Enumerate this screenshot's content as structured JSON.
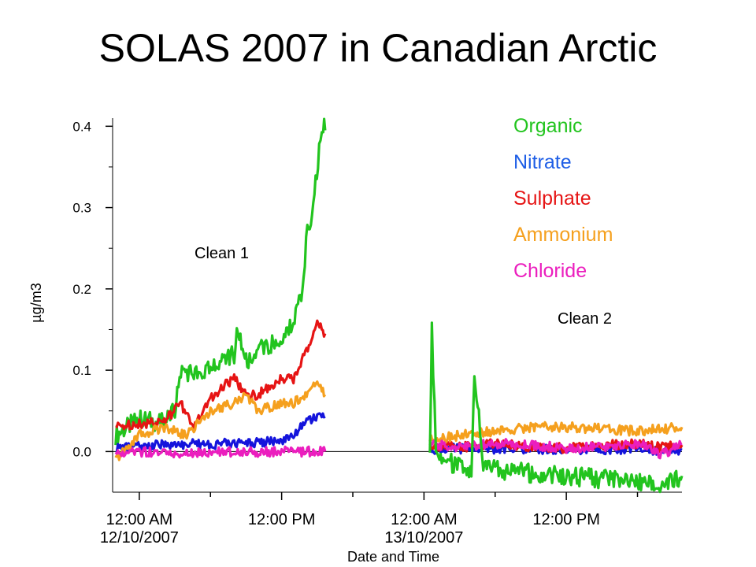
{
  "title": "SOLAS 2007 in Canadian Arctic",
  "chart_data": {
    "type": "line",
    "title": "SOLAS 2007 in Canadian Arctic",
    "xlabel": "Date and Time",
    "ylabel": "µg/m3",
    "ylim": [
      -0.05,
      0.41
    ],
    "xlim": [
      "2007-10-11T21:45",
      "2007-10-13T21:45"
    ],
    "yticks": [
      0.0,
      0.1,
      0.2,
      0.3,
      0.4
    ],
    "ytick_labels": [
      "0.0",
      "0.1",
      "0.2",
      "0.3",
      "0.4"
    ],
    "xticks": [
      {
        "t": "2007-10-12T00:00",
        "label_time": "12:00 AM",
        "label_date": "12/10/2007"
      },
      {
        "t": "2007-10-12T12:00",
        "label_time": "12:00 PM",
        "label_date": ""
      },
      {
        "t": "2007-10-13T00:00",
        "label_time": "12:00 AM",
        "label_date": "13/10/2007"
      },
      {
        "t": "2007-10-13T12:00",
        "label_time": "12:00 PM",
        "label_date": ""
      }
    ],
    "minor_xticks": [
      "2007-10-12T06:00",
      "2007-10-12T18:00",
      "2007-10-13T06:00",
      "2007-10-13T18:00"
    ],
    "zero_line": true,
    "legend_position": "top-right",
    "annotations": [
      {
        "text": "Clean 1"
      },
      {
        "text": "Clean 2"
      }
    ],
    "series": [
      {
        "name": "Organic",
        "color": "#22c41e",
        "segments": [
          {
            "x": [
              "2007-10-11T22:00",
              "2007-10-12T00:00",
              "2007-10-12T02:00",
              "2007-10-12T03:00",
              "2007-10-12T03:30",
              "2007-10-12T05:00",
              "2007-10-12T06:00",
              "2007-10-12T07:00",
              "2007-10-12T08:00",
              "2007-10-12T08:20",
              "2007-10-12T09:00",
              "2007-10-12T10:00",
              "2007-10-12T11:00",
              "2007-10-12T12:00",
              "2007-10-12T13:00",
              "2007-10-12T13:45",
              "2007-10-12T14:10",
              "2007-10-12T14:40",
              "2007-10-12T15:10",
              "2007-10-12T15:30",
              "2007-10-12T15:40"
            ],
            "y": [
              0.02,
              0.04,
              0.035,
              0.05,
              0.1,
              0.095,
              0.1,
              0.11,
              0.12,
              0.15,
              0.11,
              0.125,
              0.13,
              0.135,
              0.16,
              0.2,
              0.27,
              0.3,
              0.37,
              0.4,
              0.395
            ]
          }
        ]
      },
      {
        "name": "Nitrate",
        "color": "#1414dc",
        "segments": [
          {
            "x": [
              "2007-10-11T22:00",
              "2007-10-12T00:00",
              "2007-10-12T02:00",
              "2007-10-12T04:00",
              "2007-10-12T06:00",
              "2007-10-12T08:00",
              "2007-10-12T10:00",
              "2007-10-12T12:00",
              "2007-10-12T13:00",
              "2007-10-12T14:00",
              "2007-10-12T15:00",
              "2007-10-12T15:40"
            ],
            "y": [
              0.004,
              0.006,
              0.008,
              0.009,
              0.009,
              0.01,
              0.011,
              0.014,
              0.02,
              0.035,
              0.042,
              0.043
            ]
          },
          {
            "x": [
              "2007-10-13T00:30",
              "2007-10-13T04:00",
              "2007-10-13T08:00",
              "2007-10-13T12:00",
              "2007-10-13T16:00",
              "2007-10-13T20:00",
              "2007-10-13T21:45"
            ],
            "y": [
              0.003,
              0.004,
              0.003,
              0.002,
              0.003,
              0.002,
              0.002
            ]
          }
        ]
      },
      {
        "name": "Sulphate",
        "color": "#e61414",
        "segments": [
          {
            "x": [
              "2007-10-11T22:00",
              "2007-10-12T00:00",
              "2007-10-12T02:00",
              "2007-10-12T03:30",
              "2007-10-12T04:30",
              "2007-10-12T06:00",
              "2007-10-12T07:00",
              "2007-10-12T08:00",
              "2007-10-12T09:00",
              "2007-10-12T10:00",
              "2007-10-12T11:00",
              "2007-10-12T12:00",
              "2007-10-12T13:00",
              "2007-10-12T14:00",
              "2007-10-12T15:00",
              "2007-10-12T15:40"
            ],
            "y": [
              0.03,
              0.035,
              0.035,
              0.06,
              0.03,
              0.065,
              0.08,
              0.09,
              0.07,
              0.07,
              0.08,
              0.09,
              0.09,
              0.12,
              0.16,
              0.145
            ]
          },
          {
            "x": [
              "2007-10-13T00:30",
              "2007-10-13T03:00",
              "2007-10-13T06:00",
              "2007-10-13T09:00",
              "2007-10-13T12:00",
              "2007-10-13T15:00",
              "2007-10-13T18:00",
              "2007-10-13T20:00",
              "2007-10-13T21:45"
            ],
            "y": [
              0.008,
              0.005,
              0.01,
              0.006,
              0.004,
              0.008,
              0.01,
              0.005,
              0.008
            ]
          }
        ]
      },
      {
        "name": "Ammonium",
        "color": "#f5a01e",
        "segments": [
          {
            "x": [
              "2007-10-11T22:00",
              "2007-10-12T00:00",
              "2007-10-12T02:00",
              "2007-10-12T04:00",
              "2007-10-12T06:00",
              "2007-10-12T08:00",
              "2007-10-12T09:00",
              "2007-10-12T10:00",
              "2007-10-12T11:00",
              "2007-10-12T12:00",
              "2007-10-12T13:00",
              "2007-10-12T14:00",
              "2007-10-12T15:00",
              "2007-10-12T15:40"
            ],
            "y": [
              -0.01,
              0.02,
              0.03,
              0.02,
              0.05,
              0.06,
              0.07,
              0.05,
              0.055,
              0.06,
              0.06,
              0.07,
              0.09,
              0.07
            ]
          },
          {
            "x": [
              "2007-10-13T00:30",
              "2007-10-13T03:00",
              "2007-10-13T06:00",
              "2007-10-13T09:00",
              "2007-10-13T12:00",
              "2007-10-13T15:00",
              "2007-10-13T18:00",
              "2007-10-13T21:45"
            ],
            "y": [
              0.015,
              0.02,
              0.025,
              0.03,
              0.03,
              0.028,
              0.025,
              0.03
            ]
          }
        ]
      },
      {
        "name": "Chloride",
        "color": "#eb1ebe",
        "segments": [
          {
            "x": [
              "2007-10-11T22:00",
              "2007-10-12T00:00",
              "2007-10-12T03:00",
              "2007-10-12T06:00",
              "2007-10-12T09:00",
              "2007-10-12T12:00",
              "2007-10-12T15:40"
            ],
            "y": [
              -0.003,
              0.0,
              -0.002,
              0.0,
              -0.001,
              0.0,
              0.0
            ]
          },
          {
            "x": [
              "2007-10-13T00:30",
              "2007-10-13T03:00",
              "2007-10-13T06:00",
              "2007-10-13T09:00",
              "2007-10-13T12:00",
              "2007-10-13T15:00",
              "2007-10-13T18:00",
              "2007-10-13T20:00",
              "2007-10-13T21:45"
            ],
            "y": [
              0.008,
              0.006,
              0.01,
              0.008,
              0.004,
              0.006,
              0.01,
              -0.005,
              0.01
            ]
          }
        ]
      },
      {
        "name": "Organic",
        "color": "#22c41e",
        "segments": [
          {
            "x": [
              "2007-10-13T00:30",
              "2007-10-13T00:40",
              "2007-10-13T01:00",
              "2007-10-13T02:00",
              "2007-10-13T03:00",
              "2007-10-13T04:00",
              "2007-10-13T04:15",
              "2007-10-13T05:00",
              "2007-10-13T08:00",
              "2007-10-13T12:00",
              "2007-10-13T16:00",
              "2007-10-13T20:00",
              "2007-10-13T21:45"
            ],
            "y": [
              -0.005,
              0.15,
              0.0,
              -0.01,
              -0.02,
              -0.025,
              0.1,
              -0.02,
              -0.025,
              -0.03,
              -0.035,
              -0.04,
              -0.03
            ]
          }
        ]
      }
    ]
  }
}
